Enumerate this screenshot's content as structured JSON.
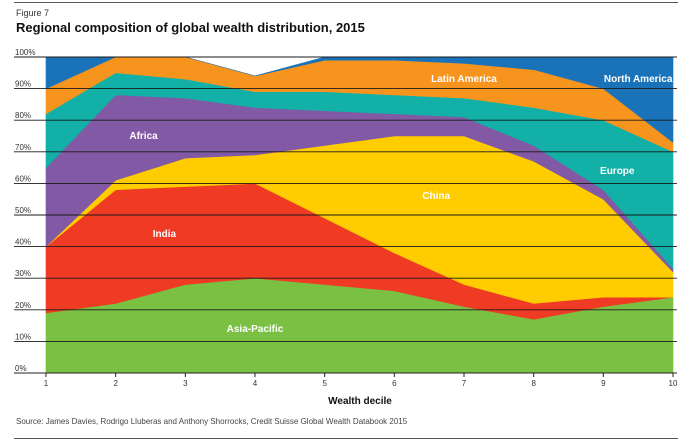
{
  "figure_label": "Figure 7",
  "source": "Source: James Davies, Rodrigo Lluberas and Anthony Shorrocks, Credit Suisse Global Wealth Databook 2015",
  "chart_data": {
    "type": "area",
    "stacked": true,
    "title": "Regional composition of global wealth distribution, 2015",
    "xlabel": "Wealth decile",
    "ylabel": "",
    "x": [
      1,
      2,
      3,
      4,
      5,
      6,
      7,
      8,
      9,
      10
    ],
    "ylim": [
      0,
      100
    ],
    "yticks": [
      0,
      10,
      20,
      30,
      40,
      50,
      60,
      70,
      80,
      90,
      100
    ],
    "ytick_labels": [
      "0%",
      "10%",
      "20%",
      "30%",
      "40%",
      "50%",
      "60%",
      "70%",
      "80%",
      "90%",
      "100%"
    ],
    "series": [
      {
        "name": "Asia-Pacific",
        "color": "#7ac143",
        "values": [
          19,
          22,
          28,
          30,
          28,
          26,
          21,
          17,
          21,
          24
        ],
        "label_at": [
          4,
          14
        ]
      },
      {
        "name": "India",
        "color": "#ef3b24",
        "values": [
          21,
          36,
          31,
          30,
          21,
          12,
          7,
          5,
          3,
          0
        ],
        "label_at": [
          2.7,
          44
        ]
      },
      {
        "name": "China",
        "color": "#ffcc00",
        "values": [
          0,
          3,
          9,
          9,
          23,
          37,
          47,
          45,
          31,
          8
        ],
        "label_at": [
          6.6,
          56
        ]
      },
      {
        "name": "Africa",
        "color": "#8159a5",
        "values": [
          25,
          27,
          19,
          15,
          11,
          7,
          6,
          5,
          3,
          1
        ],
        "label_at": [
          2.4,
          75
        ]
      },
      {
        "name": "Europe",
        "color": "#12b0a6",
        "values": [
          17,
          7,
          6,
          5,
          6,
          6,
          6,
          12,
          22,
          37
        ],
        "label_at": [
          9.2,
          64
        ]
      },
      {
        "name": "Latin America",
        "color": "#f7941d",
        "values": [
          8,
          5,
          7,
          5,
          10,
          11,
          11,
          12,
          10,
          3
        ],
        "label_at": [
          7,
          93
        ]
      },
      {
        "name": "North America",
        "color": "#1a73b9",
        "values": [
          10,
          0,
          0,
          0,
          1,
          1,
          2,
          4,
          10,
          27
        ],
        "label_at": [
          9.5,
          93
        ]
      }
    ]
  }
}
